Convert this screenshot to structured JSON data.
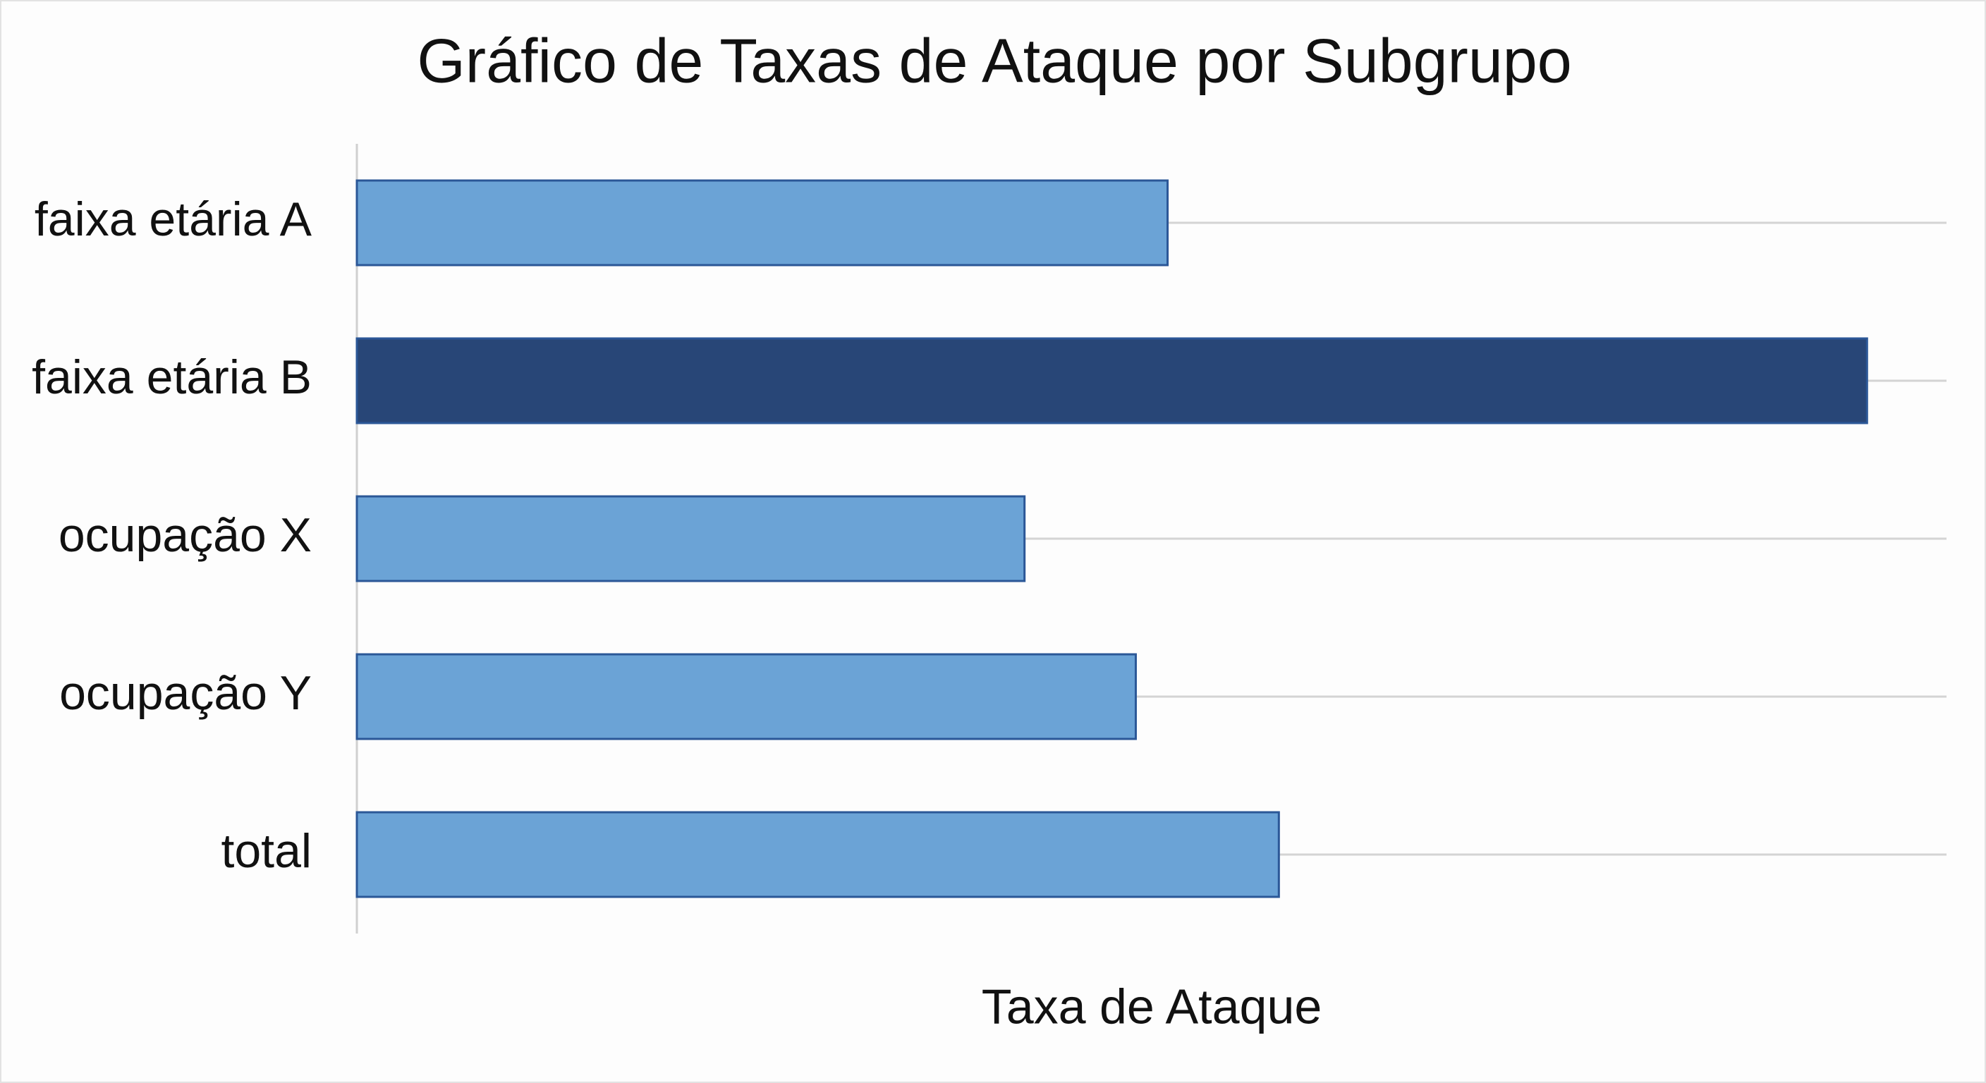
{
  "chart_data": {
    "type": "hbar",
    "title": "Gráfico de Taxas de Ataque por Subgrupo",
    "x_label": "Taxa de Ataque",
    "categories": [
      "faixa etária A",
      "faixa etária B",
      "ocupação X",
      "ocupação Y",
      "total"
    ],
    "values": [
      51,
      95,
      42,
      49,
      58
    ],
    "colors": [
      "#6ba3d6",
      "#284677",
      "#6ba3d6",
      "#6ba3d6",
      "#6ba3d6"
    ],
    "xlim": [
      0,
      100
    ],
    "grid": true
  }
}
